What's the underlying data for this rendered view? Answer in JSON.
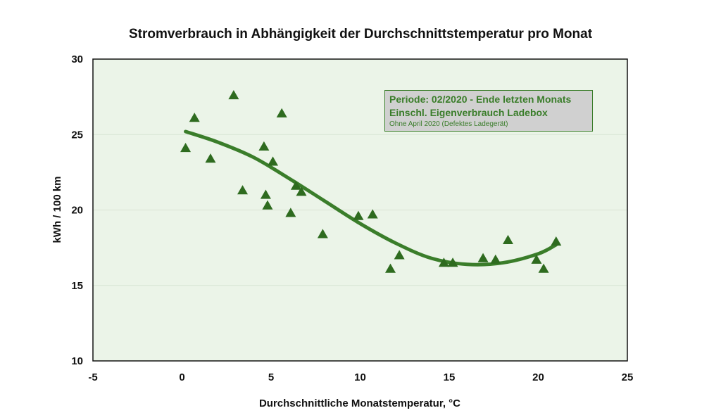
{
  "chart_data": {
    "type": "scatter",
    "title": "Stromverbrauch in Abhängigkeit der Durchschnittstemperatur pro Monat",
    "xlabel": "Durchschnittliche Monatstemperatur, °C",
    "ylabel": "kWh / 100 km",
    "xlim": [
      -5,
      25
    ],
    "ylim": [
      10,
      30
    ],
    "x_ticks": [
      -5,
      0,
      5,
      10,
      15,
      20,
      25
    ],
    "y_ticks": [
      10,
      15,
      20,
      25,
      30
    ],
    "grid": "horizontal",
    "annotation": {
      "line1": "Periode: 02/2020 - Ende letzten Monats",
      "line2": "Einschl. Eigenverbrauch Ladebox",
      "line3": "Ohne April 2020 (Defektes Ladegerät)"
    },
    "series": [
      {
        "marker": "triangle",
        "points": [
          {
            "x": 0.2,
            "y": 24.1
          },
          {
            "x": 0.7,
            "y": 26.1
          },
          {
            "x": 1.6,
            "y": 23.4
          },
          {
            "x": 2.9,
            "y": 27.6
          },
          {
            "x": 3.4,
            "y": 21.3
          },
          {
            "x": 4.6,
            "y": 24.2
          },
          {
            "x": 4.7,
            "y": 21.0
          },
          {
            "x": 4.8,
            "y": 20.3
          },
          {
            "x": 5.1,
            "y": 23.2
          },
          {
            "x": 5.6,
            "y": 26.4
          },
          {
            "x": 6.1,
            "y": 19.8
          },
          {
            "x": 6.4,
            "y": 21.6
          },
          {
            "x": 6.7,
            "y": 21.2
          },
          {
            "x": 7.9,
            "y": 18.4
          },
          {
            "x": 9.9,
            "y": 19.6
          },
          {
            "x": 10.7,
            "y": 19.7
          },
          {
            "x": 11.7,
            "y": 16.1
          },
          {
            "x": 12.2,
            "y": 17.0
          },
          {
            "x": 14.7,
            "y": 16.5
          },
          {
            "x": 15.2,
            "y": 16.5
          },
          {
            "x": 16.9,
            "y": 16.8
          },
          {
            "x": 17.6,
            "y": 16.7
          },
          {
            "x": 18.3,
            "y": 18.0
          },
          {
            "x": 19.9,
            "y": 16.7
          },
          {
            "x": 20.3,
            "y": 16.1
          },
          {
            "x": 21.0,
            "y": 17.9
          }
        ]
      },
      {
        "type": "trendline",
        "points": [
          {
            "x": 0.2,
            "y": 25.2
          },
          {
            "x": 2,
            "y": 24.5
          },
          {
            "x": 4,
            "y": 23.5
          },
          {
            "x": 6,
            "y": 22.1
          },
          {
            "x": 8,
            "y": 20.6
          },
          {
            "x": 10,
            "y": 19.1
          },
          {
            "x": 12,
            "y": 17.8
          },
          {
            "x": 14,
            "y": 16.8
          },
          {
            "x": 16,
            "y": 16.4
          },
          {
            "x": 18,
            "y": 16.5
          },
          {
            "x": 20,
            "y": 17.1
          },
          {
            "x": 21,
            "y": 17.7
          }
        ]
      }
    ],
    "colors": {
      "plot_background": "#ebf4e8",
      "marker": "#2e6b1f",
      "trendline": "#3a7d2a",
      "gridline": "#d8e4d4"
    }
  }
}
